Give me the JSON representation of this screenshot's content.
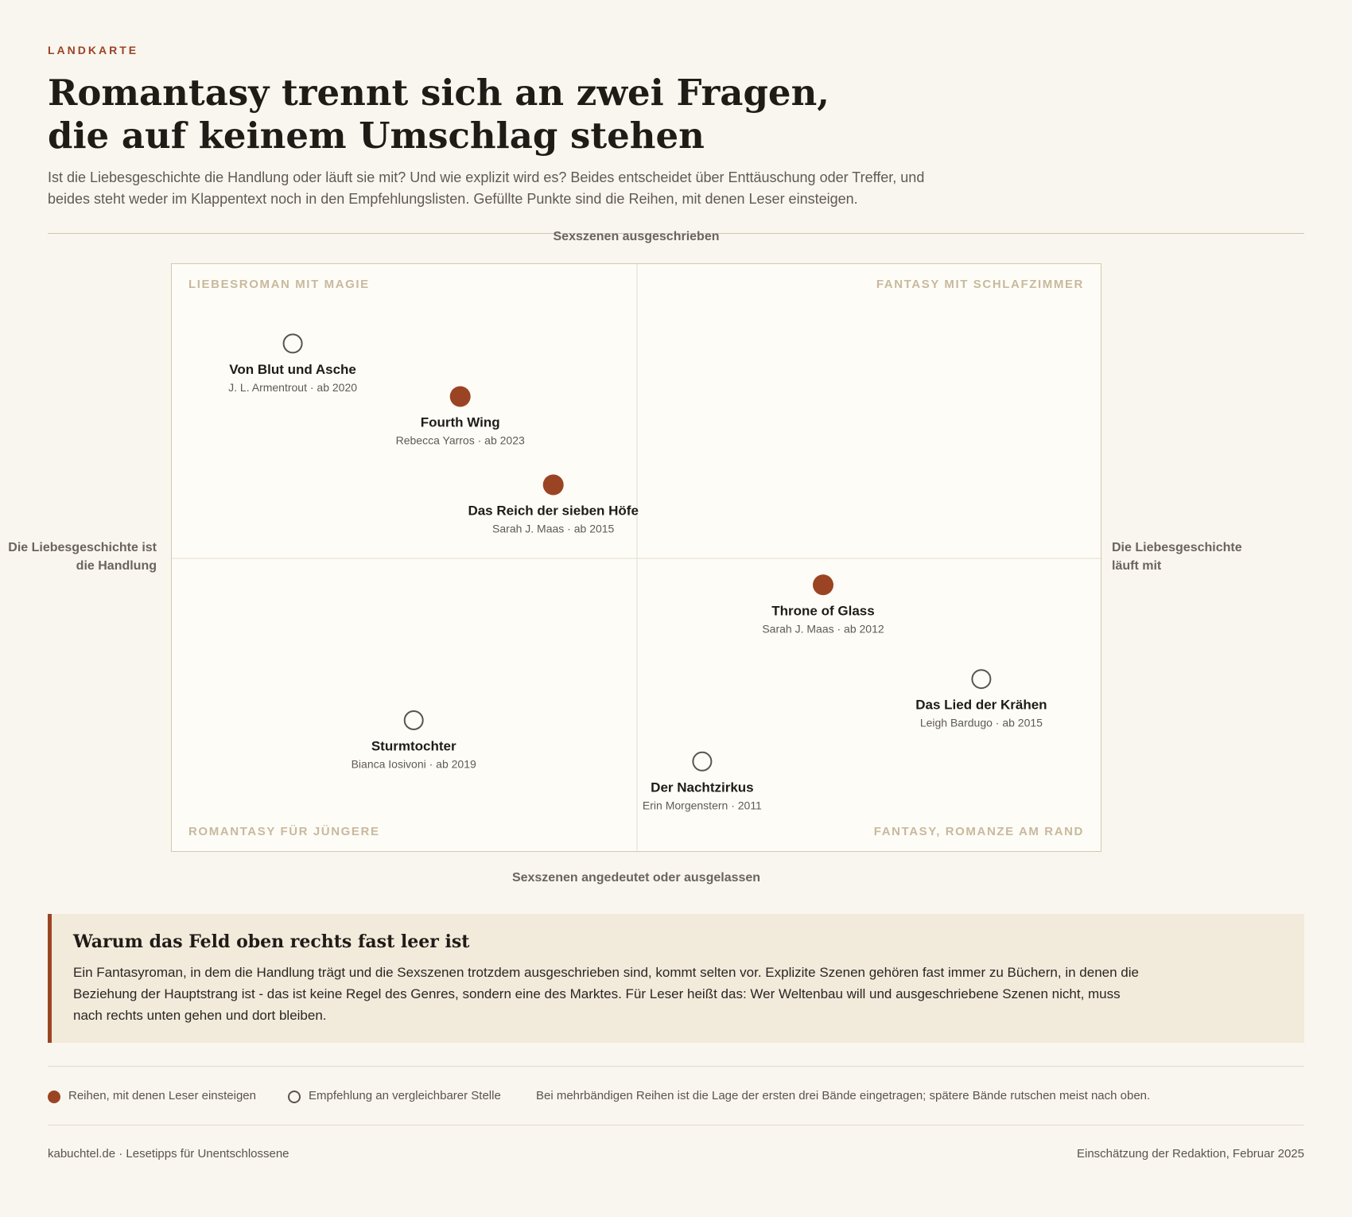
{
  "header": {
    "kicker": "LANDKARTE",
    "title": "Romantasy trennt sich an zwei Fragen, die auf keinem Umschlag stehen",
    "dek": "Ist die Liebesgeschichte die Handlung oder läuft sie mit? Und wie explizit wird es? Beides entscheidet über Enttäuschung oder Treffer, und beides steht weder im Klappentext noch in den Empfehlungslisten. Gefüllte Punkte sind die Reihen, mit denen Leser einsteigen."
  },
  "chart_data": {
    "type": "scatter",
    "axes": {
      "top": "Sexszenen ausgeschrieben",
      "bottom": "Sexszenen angedeutet oder ausgelassen",
      "left": "Die Liebesgeschichte ist die Handlung",
      "right": "Die Liebesgeschichte läuft mit"
    },
    "xlim": [
      -1,
      1
    ],
    "ylim": [
      -1,
      1
    ],
    "grid": "center-crosshair",
    "quadrants": {
      "top_left": "LIEBESROMAN MIT MAGIE",
      "top_right": "FANTASY MIT SCHLAFZIMMER",
      "bottom_left": "ROMANTASY FÜR JÜNGERE",
      "bottom_right": "FANTASY, ROMANZE AM RAND"
    },
    "points": [
      {
        "title": "Von Blut und Asche",
        "sub": "J. L. Armentrout · ab 2020",
        "x": -0.74,
        "y": 0.73,
        "filled": false
      },
      {
        "title": "Fourth Wing",
        "sub": "Rebecca Yarros · ab 2023",
        "x": -0.38,
        "y": 0.55,
        "filled": true
      },
      {
        "title": "Das Reich der sieben Höfe",
        "sub": "Sarah J. Maas · ab 2015",
        "x": -0.18,
        "y": 0.25,
        "filled": true
      },
      {
        "title": "Throne of Glass",
        "sub": "Sarah J. Maas · ab 2012",
        "x": 0.4,
        "y": -0.09,
        "filled": true
      },
      {
        "title": "Das Lied der Krähen",
        "sub": "Leigh Bardugo · ab 2015",
        "x": 0.74,
        "y": -0.41,
        "filled": false
      },
      {
        "title": "Sturmtochter",
        "sub": "Bianca Iosivoni · ab 2019",
        "x": -0.48,
        "y": -0.55,
        "filled": false
      },
      {
        "title": "Der Nachtzirkus",
        "sub": "Erin Morgenstern · 2011",
        "x": 0.14,
        "y": -0.69,
        "filled": false
      }
    ]
  },
  "callout": {
    "title": "Warum das Feld oben rechts fast leer ist",
    "text": "Ein Fantasyroman, in dem die Handlung trägt und die Sexszenen trotzdem ausgeschrieben sind, kommt selten vor. Explizite Szenen gehören fast immer zu Büchern, in denen die Beziehung der Hauptstrang ist - das ist keine Regel des Genres, sondern eine des Marktes. Für Leser heißt das: Wer Weltenbau will und ausgeschriebene Szenen nicht, muss nach rechts unten gehen und dort bleiben."
  },
  "legend": {
    "filled": "Reihen, mit denen Leser einsteigen",
    "hollow": "Empfehlung an vergleichbarer Stelle",
    "note": "Bei mehrbändigen Reihen ist die Lage der ersten drei Bände eingetragen; spätere Bände rutschen meist nach oben."
  },
  "footer": {
    "left": "kabuchtel.de · Lesetipps für Unentschlossene",
    "right": "Einschätzung der Redaktion, Februar 2025"
  },
  "colors": {
    "accent": "#9b4424",
    "hollow_stroke": "#5a544d"
  }
}
